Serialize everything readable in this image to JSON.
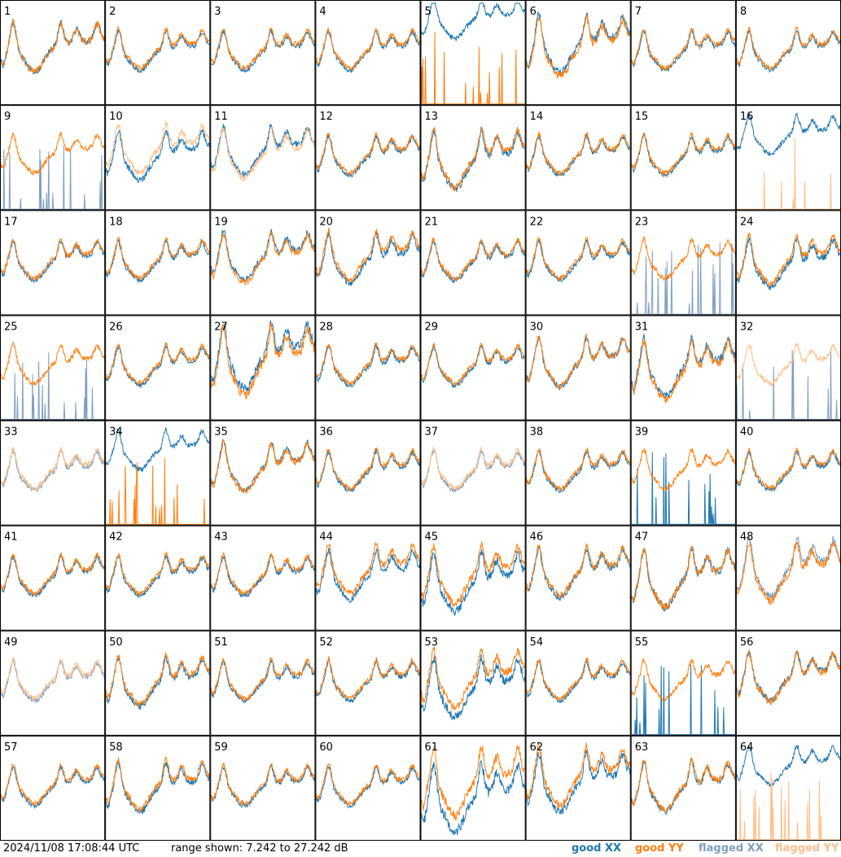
{
  "footer": {
    "timestamp": "2024/11/08 17:08:44 UTC",
    "range": "range shown: 7.242 to 27.242 dB"
  },
  "legend": [
    {
      "key": "gx",
      "label": "good XX",
      "color": "#1f77b4"
    },
    {
      "key": "gy",
      "label": "good YY",
      "color": "#ff7f0e"
    },
    {
      "key": "fx",
      "label": "flagged XX",
      "color": "#7f9fbf"
    },
    {
      "key": "fy",
      "label": "flagged YY",
      "color": "#ffbf87"
    }
  ],
  "chart_data": {
    "type": "line",
    "layout": "small-multiples-8x8",
    "ylim": [
      7.242,
      27.242
    ],
    "panels": [
      {
        "id": "1",
        "xx": "good",
        "yy": "good",
        "var": 1
      },
      {
        "id": "2",
        "xx": "good",
        "yy": "good"
      },
      {
        "id": "3",
        "xx": "good",
        "yy": "good"
      },
      {
        "id": "4",
        "xx": "good",
        "yy": "good"
      },
      {
        "id": "5",
        "xx": "good",
        "yy": "good",
        "yyAlt": "spikes",
        "xxOff": 3
      },
      {
        "id": "6",
        "xx": "good",
        "yy": "good",
        "var": 2
      },
      {
        "id": "7",
        "xx": "good",
        "yy": "good"
      },
      {
        "id": "8",
        "xx": "good",
        "yy": "good"
      },
      {
        "id": "9",
        "xx": "flagged",
        "yy": "good",
        "xxAlt": "spikes"
      },
      {
        "id": "10",
        "xx": "good",
        "yy": "flagged",
        "var": 1
      },
      {
        "id": "11",
        "xx": "good",
        "yy": "flagged",
        "var": 1
      },
      {
        "id": "12",
        "xx": "good",
        "yy": "good"
      },
      {
        "id": "13",
        "xx": "good",
        "yy": "good",
        "var": 2
      },
      {
        "id": "14",
        "xx": "good",
        "yy": "good"
      },
      {
        "id": "15",
        "xx": "good",
        "yy": "good"
      },
      {
        "id": "16",
        "xx": "good",
        "yy": "flagged",
        "yyAlt": "spikes",
        "xxOff": 2
      },
      {
        "id": "17",
        "xx": "good",
        "yy": "good"
      },
      {
        "id": "18",
        "xx": "good",
        "yy": "good"
      },
      {
        "id": "19",
        "xx": "good",
        "yy": "good",
        "var": 1
      },
      {
        "id": "20",
        "xx": "good",
        "yy": "good",
        "var": 1
      },
      {
        "id": "21",
        "xx": "good",
        "yy": "good"
      },
      {
        "id": "22",
        "xx": "good",
        "yy": "good"
      },
      {
        "id": "23",
        "xx": "flagged",
        "yy": "good",
        "xxAlt": "spikes"
      },
      {
        "id": "24",
        "xx": "good",
        "yy": "good",
        "var": 1
      },
      {
        "id": "25",
        "xx": "flagged",
        "yy": "good",
        "xxAlt": "spikes"
      },
      {
        "id": "26",
        "xx": "good",
        "yy": "good"
      },
      {
        "id": "27",
        "xx": "good",
        "yy": "good",
        "var": 3
      },
      {
        "id": "28",
        "xx": "good",
        "yy": "good"
      },
      {
        "id": "29",
        "xx": "good",
        "yy": "good"
      },
      {
        "id": "30",
        "xx": "good",
        "yy": "good",
        "var": 1
      },
      {
        "id": "31",
        "xx": "good",
        "yy": "good",
        "var": 2
      },
      {
        "id": "32",
        "xx": "flagged",
        "yy": "flagged",
        "xxAlt": "spikes"
      },
      {
        "id": "33",
        "xx": "flagged",
        "yy": "flagged"
      },
      {
        "id": "34",
        "xx": "good",
        "yy": "good",
        "yyAlt": "spikes",
        "xxOff": 2
      },
      {
        "id": "35",
        "xx": "good",
        "yy": "good",
        "var": 1
      },
      {
        "id": "36",
        "xx": "good",
        "yy": "good"
      },
      {
        "id": "37",
        "xx": "flagged",
        "yy": "flagged"
      },
      {
        "id": "38",
        "xx": "good",
        "yy": "good"
      },
      {
        "id": "39",
        "xx": "good",
        "yy": "good",
        "xxAlt": "spikes"
      },
      {
        "id": "40",
        "xx": "good",
        "yy": "good"
      },
      {
        "id": "41",
        "xx": "good",
        "yy": "good"
      },
      {
        "id": "42",
        "xx": "good",
        "yy": "good"
      },
      {
        "id": "43",
        "xx": "good",
        "yy": "good"
      },
      {
        "id": "44",
        "xx": "good",
        "yy": "good",
        "var": 1
      },
      {
        "id": "45",
        "xx": "good",
        "yy": "good",
        "var": 2
      },
      {
        "id": "46",
        "xx": "good",
        "yy": "good",
        "var": 1
      },
      {
        "id": "47",
        "xx": "good",
        "yy": "good",
        "var": 2
      },
      {
        "id": "48",
        "xx": "flagged",
        "yy": "good",
        "var": 2
      },
      {
        "id": "49",
        "xx": "flagged",
        "yy": "flagged"
      },
      {
        "id": "50",
        "xx": "good",
        "yy": "good",
        "var": 1
      },
      {
        "id": "51",
        "xx": "good",
        "yy": "good"
      },
      {
        "id": "52",
        "xx": "good",
        "yy": "good"
      },
      {
        "id": "53",
        "xx": "good",
        "yy": "good",
        "var": 2
      },
      {
        "id": "54",
        "xx": "good",
        "yy": "good"
      },
      {
        "id": "55",
        "xx": "good",
        "yy": "good",
        "xxAlt": "spikes"
      },
      {
        "id": "56",
        "xx": "good",
        "yy": "good",
        "var": 1
      },
      {
        "id": "57",
        "xx": "good",
        "yy": "good"
      },
      {
        "id": "58",
        "xx": "good",
        "yy": "good",
        "var": 1
      },
      {
        "id": "59",
        "xx": "good",
        "yy": "good"
      },
      {
        "id": "60",
        "xx": "good",
        "yy": "good"
      },
      {
        "id": "61",
        "xx": "good",
        "yy": "good",
        "var": 3
      },
      {
        "id": "62",
        "xx": "good",
        "yy": "good",
        "var": 2
      },
      {
        "id": "63",
        "xx": "good",
        "yy": "good",
        "var": 1
      },
      {
        "id": "64",
        "xx": "good",
        "yy": "flagged",
        "yyAlt": "spikes",
        "xxOff": 2
      }
    ]
  }
}
